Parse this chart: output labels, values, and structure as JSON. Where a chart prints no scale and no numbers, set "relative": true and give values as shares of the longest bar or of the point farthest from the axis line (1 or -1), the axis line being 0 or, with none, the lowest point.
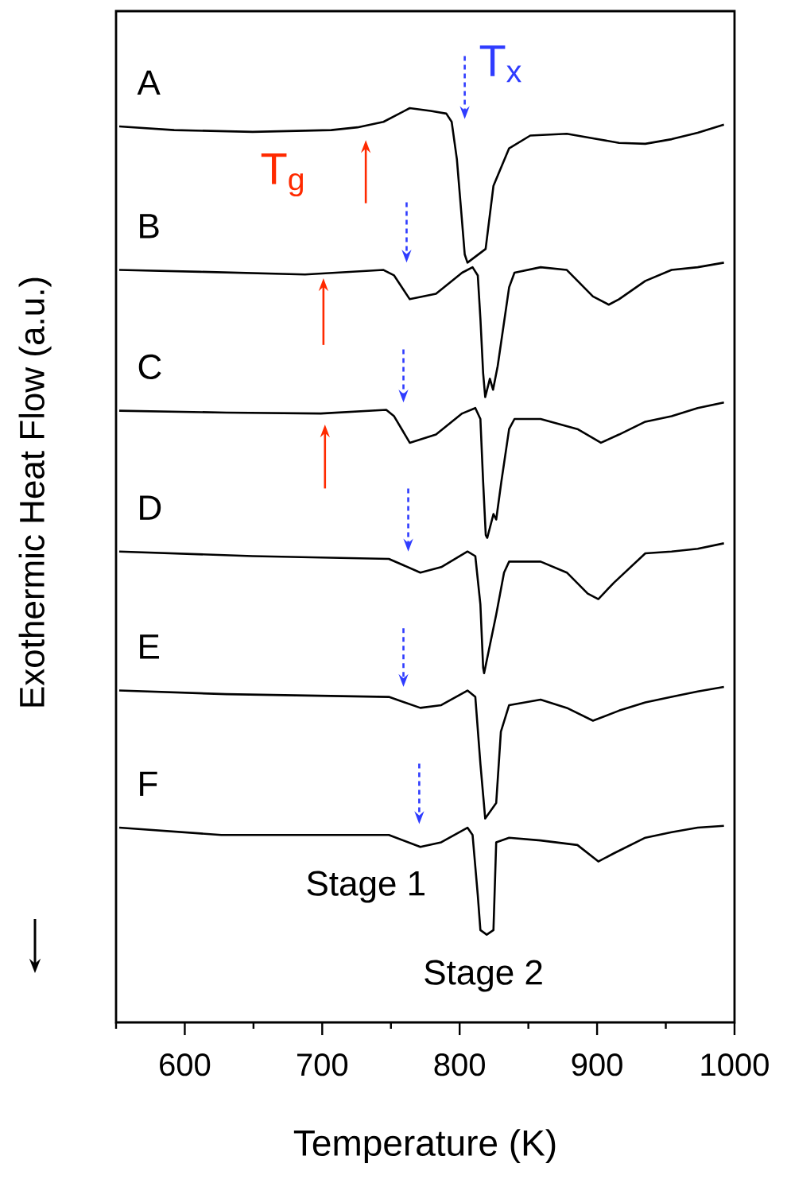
{
  "chart_data": {
    "type": "line",
    "relative": true,
    "xlabel": "Temperature (K)",
    "ylabel": "Exothermic Heat Flow (a.u.)",
    "xlim": [
      550,
      1000
    ],
    "xticks": [
      {
        "value": 550,
        "label": null
      },
      600,
      {
        "value": 650,
        "label": null
      },
      700,
      {
        "value": 750,
        "label": null
      },
      800,
      {
        "value": 850,
        "label": null
      },
      900,
      {
        "value": 950,
        "label": null
      },
      1000
    ],
    "legend": false,
    "series": [
      {
        "name": "A",
        "color": "#000000",
        "x": [
          552.3,
          592.3,
          649.4,
          706.6,
          725.7,
          744.6,
          763.7,
          778.9,
          790.3,
          794.2,
          798,
          801.8,
          803.7,
          805.7,
          818.9,
          824.6,
          836,
          851.4,
          878,
          897,
          916,
          935.1,
          954.2,
          973.2,
          992.3
        ],
        "values": [
          0.98,
          0.976,
          0.974,
          0.976,
          0.979,
          0.985,
          1.0,
          0.997,
          0.994,
          0.985,
          0.944,
          0.875,
          0.84,
          0.831,
          0.846,
          0.915,
          0.956,
          0.97,
          0.972,
          0.967,
          0.962,
          0.961,
          0.966,
          0.973,
          0.982
        ]
      },
      {
        "name": "B",
        "color": "#000000",
        "x": [
          552.3,
          611.4,
          687.5,
          744.6,
          752.3,
          763.7,
          782.8,
          801.8,
          809.4,
          813.2,
          815.1,
          817.1,
          818.6,
          822,
          824.3,
          827.7,
          836,
          839.9,
          858.9,
          878,
          897,
          908.5,
          916,
          935.1,
          954.2,
          973.2,
          992.3
        ],
        "values": [
          0.823,
          0.821,
          0.818,
          0.823,
          0.817,
          0.791,
          0.797,
          0.82,
          0.826,
          0.817,
          0.77,
          0.71,
          0.684,
          0.704,
          0.692,
          0.718,
          0.804,
          0.82,
          0.826,
          0.823,
          0.794,
          0.785,
          0.791,
          0.811,
          0.823,
          0.826,
          0.831
        ]
      },
      {
        "name": "C",
        "color": "#000000",
        "x": [
          552.3,
          630.3,
          698.9,
          746.6,
          752.3,
          763.7,
          782.8,
          801.8,
          811.4,
          815.1,
          817.1,
          819,
          820.1,
          824.6,
          826.6,
          830.3,
          836,
          839.9,
          858.9,
          885.7,
          902.8,
          916,
          935.1,
          954.2,
          973.2,
          992.3
        ],
        "values": [
          0.669,
          0.667,
          0.666,
          0.67,
          0.663,
          0.634,
          0.643,
          0.666,
          0.672,
          0.66,
          0.591,
          0.533,
          0.53,
          0.556,
          0.55,
          0.591,
          0.649,
          0.66,
          0.66,
          0.649,
          0.634,
          0.643,
          0.657,
          0.663,
          0.672,
          0.678
        ]
      },
      {
        "name": "D",
        "color": "#000000",
        "x": [
          552.3,
          649.4,
          748.5,
          771.4,
          786.6,
          805.7,
          811.4,
          815.1,
          817.1,
          817.8,
          826.6,
          832.3,
          836,
          858.9,
          878,
          893.2,
          900.9,
          912.3,
          935.1,
          954.2,
          973.2,
          992.3
        ],
        "values": [
          0.515,
          0.51,
          0.507,
          0.492,
          0.498,
          0.515,
          0.51,
          0.457,
          0.388,
          0.382,
          0.446,
          0.492,
          0.504,
          0.504,
          0.492,
          0.469,
          0.463,
          0.481,
          0.513,
          0.515,
          0.518,
          0.524
        ]
      },
      {
        "name": "E",
        "color": "#000000",
        "x": [
          552.3,
          630.3,
          748.5,
          771.4,
          786.6,
          805.7,
          811.4,
          815.1,
          818.6,
          826.6,
          830,
          836,
          858.9,
          878,
          897,
          916,
          935.1,
          954.2,
          973.2,
          992.3
        ],
        "values": [
          0.363,
          0.359,
          0.356,
          0.344,
          0.347,
          0.363,
          0.356,
          0.283,
          0.223,
          0.24,
          0.318,
          0.347,
          0.353,
          0.344,
          0.33,
          0.341,
          0.35,
          0.356,
          0.362,
          0.367
        ]
      },
      {
        "name": "F",
        "color": "#000000",
        "x": [
          552.3,
          626.6,
          748.5,
          771.4,
          786.6,
          805.7,
          809.4,
          813.2,
          815.1,
          819.7,
          824.6,
          826.6,
          836,
          858.9,
          885.7,
          900.9,
          912.3,
          935.1,
          954.2,
          973.2,
          992.3
        ],
        "values": [
          0.213,
          0.205,
          0.205,
          0.192,
          0.197,
          0.213,
          0.205,
          0.139,
          0.101,
          0.096,
          0.101,
          0.197,
          0.202,
          0.199,
          0.194,
          0.176,
          0.185,
          0.202,
          0.208,
          0.213,
          0.215
        ]
      }
    ],
    "annotations": [
      "T$_{g}$",
      "T$_{x}$",
      "Stage 1",
      "Stage 2"
    ]
  }
}
